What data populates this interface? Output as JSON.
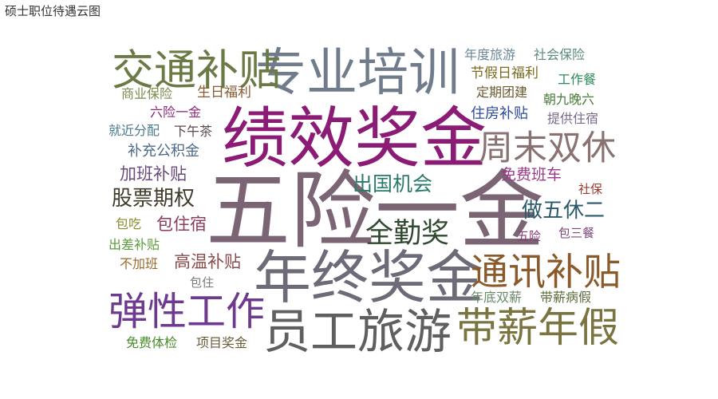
{
  "chart_title": "硕士职位待遇云图",
  "chart_data": {
    "type": "wordcloud",
    "title": "硕士职位待遇云图",
    "words": [
      {
        "text": "五险一金",
        "weight": 100,
        "color": "#7b6575"
      },
      {
        "text": "绩效奖金",
        "weight": 78,
        "color": "#8b1b74"
      },
      {
        "text": "年终奖金",
        "weight": 68,
        "color": "#6e6a78"
      },
      {
        "text": "专业培训",
        "weight": 60,
        "color": "#707c8c"
      },
      {
        "text": "员工旅游",
        "weight": 56,
        "color": "#5f5f5f"
      },
      {
        "text": "交通补贴",
        "weight": 50,
        "color": "#6b7a45"
      },
      {
        "text": "带薪年假",
        "weight": 48,
        "color": "#7a7440"
      },
      {
        "text": "弹性工作",
        "weight": 46,
        "color": "#6e3a8f"
      },
      {
        "text": "通讯补贴",
        "weight": 44,
        "color": "#8a5a2a"
      },
      {
        "text": "周末双休",
        "weight": 40,
        "color": "#8a7272"
      },
      {
        "text": "全勤奖",
        "weight": 33,
        "color": "#2f4a2f"
      },
      {
        "text": "股票期权",
        "weight": 24,
        "color": "#3f3a2a"
      },
      {
        "text": "做五休二",
        "weight": 24,
        "color": "#2a5a6a"
      },
      {
        "text": "出国机会",
        "weight": 23,
        "color": "#2a7a6a"
      },
      {
        "text": "加班补贴",
        "weight": 20,
        "color": "#6a4a7a"
      },
      {
        "text": "高温补贴",
        "weight": 20,
        "color": "#8a4a4a"
      },
      {
        "text": "包住宿",
        "weight": 20,
        "color": "#8a3a5a"
      },
      {
        "text": "免费班车",
        "weight": 18,
        "color": "#9a3a8a"
      },
      {
        "text": "补充公积金",
        "weight": 17,
        "color": "#4a6a8a"
      },
      {
        "text": "住房补贴",
        "weight": 17,
        "color": "#2a4a9a"
      },
      {
        "text": "节假日福利",
        "weight": 16,
        "color": "#7a6a20"
      },
      {
        "text": "生日福利",
        "weight": 16,
        "color": "#8a5a30"
      },
      {
        "text": "年度旅游",
        "weight": 15,
        "color": "#6a8a9a"
      },
      {
        "text": "社会保险",
        "weight": 15,
        "color": "#5a8a7a"
      },
      {
        "text": "工作餐",
        "weight": 15,
        "color": "#2a8a5a"
      },
      {
        "text": "朝九晚六",
        "weight": 15,
        "color": "#4a7a3a"
      },
      {
        "text": "提供住宿",
        "weight": 15,
        "color": "#7a6a8a"
      },
      {
        "text": "定期团建",
        "weight": 15,
        "color": "#6a5a30"
      },
      {
        "text": "商业保险",
        "weight": 15,
        "color": "#7a8a4a"
      },
      {
        "text": "六险一金",
        "weight": 15,
        "color": "#8a2a7a"
      },
      {
        "text": "就近分配",
        "weight": 15,
        "color": "#4a7a8a"
      },
      {
        "text": "下午茶",
        "weight": 15,
        "color": "#5a4a4a"
      },
      {
        "text": "社保",
        "weight": 14,
        "color": "#9a3a2a"
      },
      {
        "text": "包吃",
        "weight": 15,
        "color": "#8a8a2a"
      },
      {
        "text": "出差补贴",
        "weight": 15,
        "color": "#5a9a3a"
      },
      {
        "text": "五险",
        "weight": 14,
        "color": "#8a3a7a"
      },
      {
        "text": "包三餐",
        "weight": 14,
        "color": "#7a4a7a"
      },
      {
        "text": "不加班",
        "weight": 15,
        "color": "#9a6a2a"
      },
      {
        "text": "包住",
        "weight": 14,
        "color": "#7a7a7a"
      },
      {
        "text": "年底双薪",
        "weight": 15,
        "color": "#6a8a6a"
      },
      {
        "text": "带薪病假",
        "weight": 15,
        "color": "#5a6a3a"
      },
      {
        "text": "免费体检",
        "weight": 15,
        "color": "#4a8a2a"
      },
      {
        "text": "项目奖金",
        "weight": 15,
        "color": "#6a5a3a"
      }
    ]
  }
}
